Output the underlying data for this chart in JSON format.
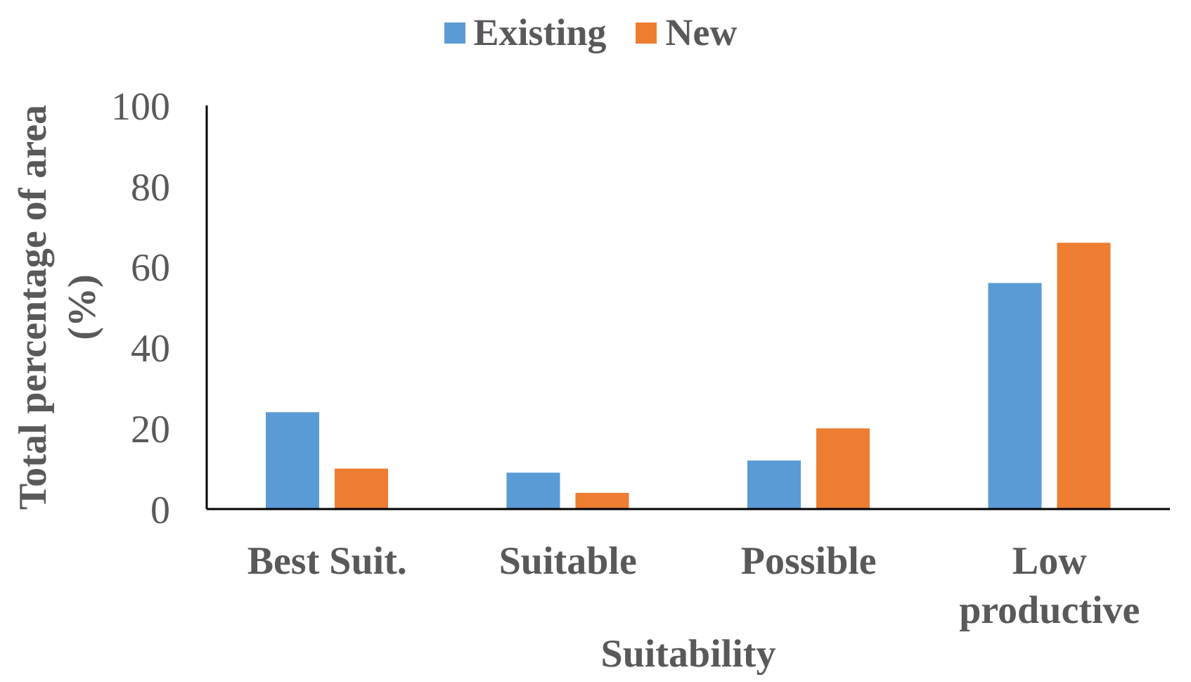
{
  "chart_data": {
    "type": "bar",
    "categories": [
      "Best Suit.",
      "Suitable",
      "Possible",
      "Low productive"
    ],
    "series": [
      {
        "name": "Existing",
        "color": "#5b9bd5",
        "values": [
          24,
          9,
          12,
          56
        ]
      },
      {
        "name": "New",
        "color": "#ed7d31",
        "values": [
          10,
          4,
          20,
          66
        ]
      }
    ],
    "xlabel": "Suitability",
    "ylabel": "Total percentage of area (%)",
    "ylim": [
      0,
      100
    ],
    "yticks": [
      0,
      20,
      40,
      60,
      80,
      100
    ],
    "legend": "top"
  }
}
